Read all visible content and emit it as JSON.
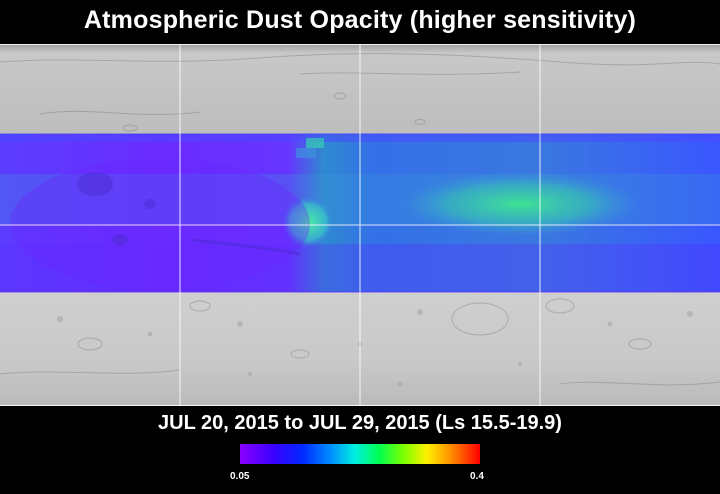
{
  "title": "Atmospheric Dust Opacity (higher sensitivity)",
  "date_range": "JUL 20, 2015 to JUL 29, 2015 (Ls 15.5-19.9)",
  "colorbar": {
    "min_label": "0.05",
    "max_label": "0.4",
    "colors": [
      "#8a00ff",
      "#3a00ff",
      "#0028ff",
      "#0090ff",
      "#00f0e0",
      "#00ff50",
      "#7aff00",
      "#fff000",
      "#ff8c00",
      "#ff0000"
    ]
  },
  "map": {
    "base_color": "#c4c4c4",
    "grid_color": "#ffffff",
    "data_band_colors": {
      "violet": "#6a2cff",
      "blue": "#3a5cff",
      "cyan": "#3aa8d8",
      "green": "#3ad88a"
    }
  }
}
